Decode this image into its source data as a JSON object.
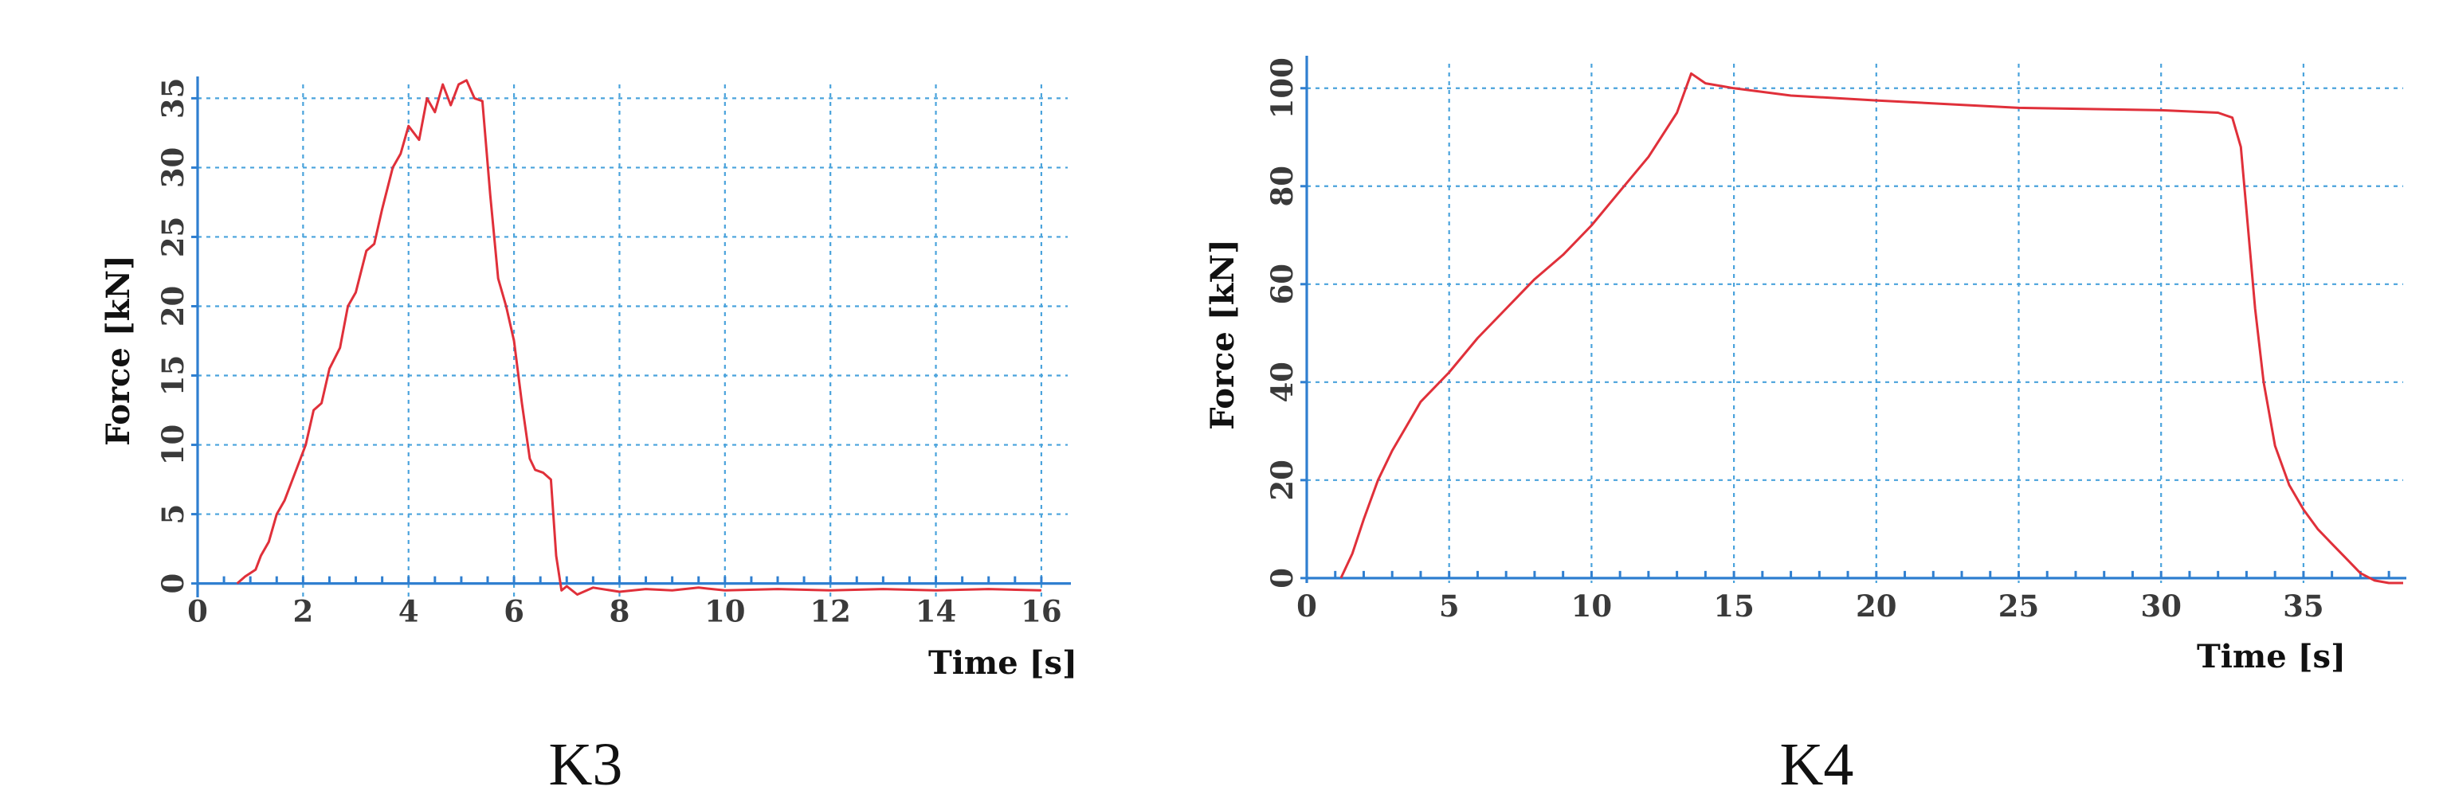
{
  "chart_data": [
    {
      "type": "line",
      "caption": "K3",
      "xlabel": "Time [s]",
      "ylabel": "Force [kN]",
      "xlim": [
        0,
        16.5
      ],
      "ylim": [
        -1,
        36
      ],
      "xticks": [
        0,
        2,
        4,
        6,
        8,
        10,
        12,
        14,
        16
      ],
      "xtick_labels": [
        "0",
        "2",
        "4",
        "6",
        "8",
        "10",
        "12",
        "14",
        "16"
      ],
      "yticks": [
        0,
        5,
        10,
        15,
        20,
        25,
        30,
        35
      ],
      "ytick_labels": [
        "0",
        "5",
        "10",
        "15",
        "20",
        "25",
        "30",
        "35"
      ],
      "grid": true,
      "series": [
        {
          "color": "#e0303a",
          "x": [
            0.75,
            0.9,
            1.1,
            1.2,
            1.35,
            1.5,
            1.65,
            1.8,
            1.95,
            2.05,
            2.2,
            2.35,
            2.5,
            2.7,
            2.85,
            3.0,
            3.2,
            3.35,
            3.5,
            3.7,
            3.85,
            4.0,
            4.2,
            4.35,
            4.5,
            4.65,
            4.8,
            4.95,
            5.1,
            5.25,
            5.4,
            5.55,
            5.7,
            5.85,
            6.0,
            6.15,
            6.3,
            6.4,
            6.55,
            6.7,
            6.8,
            6.9,
            7.0,
            7.2,
            7.5,
            8.0,
            8.5,
            9.0,
            9.5,
            10.0,
            11.0,
            12.0,
            13.0,
            14.0,
            15.0,
            16.0
          ],
          "y": [
            0.0,
            0.5,
            1.0,
            2.0,
            3.0,
            5.0,
            6.0,
            7.5,
            9.0,
            10.0,
            12.5,
            13.0,
            15.5,
            17.0,
            20.0,
            21.0,
            24.0,
            24.5,
            27.0,
            30.0,
            31.0,
            33.0,
            32.0,
            35.0,
            34.0,
            36.0,
            34.5,
            36.0,
            36.3,
            35.0,
            34.8,
            28.0,
            22.0,
            20.0,
            17.5,
            13.0,
            9.0,
            8.2,
            8.0,
            7.5,
            2.0,
            -0.5,
            -0.2,
            -0.8,
            -0.3,
            -0.6,
            -0.4,
            -0.5,
            -0.3,
            -0.5,
            -0.4,
            -0.5,
            -0.4,
            -0.5,
            -0.4,
            -0.5
          ]
        }
      ]
    },
    {
      "type": "line",
      "caption": "K4",
      "xlabel": "Time [s]",
      "ylabel": "Force [kN]",
      "xlim": [
        0,
        38.5
      ],
      "ylim": [
        -1,
        105
      ],
      "xticks": [
        0,
        5,
        10,
        15,
        20,
        25,
        30,
        35
      ],
      "xtick_labels": [
        "0",
        "5",
        "10",
        "15",
        "20",
        "25",
        "30",
        "35"
      ],
      "yticks": [
        0,
        20,
        40,
        60,
        80,
        100
      ],
      "ytick_labels": [
        "0",
        "20",
        "40",
        "60",
        "80",
        "100"
      ],
      "grid": true,
      "series": [
        {
          "color": "#e0303a",
          "x": [
            1.2,
            1.6,
            2.0,
            2.5,
            3.0,
            3.5,
            4.0,
            5.0,
            6.0,
            7.0,
            8.0,
            9.0,
            10.0,
            11.0,
            12.0,
            13.0,
            13.5,
            14.0,
            15.0,
            17.0,
            20.0,
            25.0,
            30.0,
            32.0,
            32.5,
            32.8,
            33.0,
            33.3,
            33.6,
            34.0,
            34.5,
            35.0,
            35.5,
            36.0,
            36.5,
            37.0,
            37.5,
            38.0,
            38.5
          ],
          "y": [
            0.0,
            5.0,
            12.0,
            20.0,
            26.0,
            31.0,
            36.0,
            42.0,
            49.0,
            55.0,
            61.0,
            66.0,
            72.0,
            79.0,
            86.0,
            95.0,
            103.0,
            101.0,
            100.0,
            98.5,
            97.5,
            96.0,
            95.5,
            95.0,
            94.0,
            88.0,
            75.0,
            55.0,
            40.0,
            27.0,
            19.0,
            14.0,
            10.0,
            7.0,
            4.0,
            1.0,
            -0.5,
            -1.0,
            -1.0
          ]
        }
      ]
    }
  ]
}
